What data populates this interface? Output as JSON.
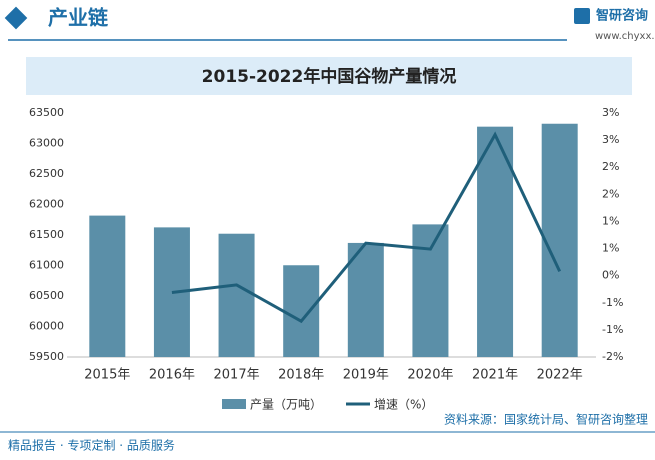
{
  "header": {
    "title": "产业链",
    "brand": "智研咨询",
    "url": "www.chyxx.com"
  },
  "chart_data": {
    "type": "bar",
    "title": "2015-2022年中国谷物产量情况",
    "categories": [
      "2015年",
      "2016年",
      "2017年",
      "2018年",
      "2019年",
      "2020年",
      "2021年",
      "2022年"
    ],
    "series": [
      {
        "name": "产量（万吨）",
        "type": "bar",
        "color": "#5b8fa8",
        "values": [
          61818,
          61625,
          61521,
          61004,
          61370,
          61674,
          63276,
          63324
        ]
      },
      {
        "name": "增速（%）",
        "type": "line",
        "axis": "y2",
        "color": "#1f5f7a",
        "values": [
          null,
          -0.31,
          -0.17,
          -0.84,
          0.6,
          0.49,
          2.6,
          0.08
        ]
      }
    ],
    "ylim": [
      59500,
      63500
    ],
    "yticks": [
      59500,
      60000,
      60500,
      61000,
      61500,
      62000,
      62500,
      63000,
      63500
    ],
    "y2lim": [
      -1.5,
      3
    ],
    "y2ticks": [
      {
        "value": -1.5,
        "label": "-2%"
      },
      {
        "value": -1,
        "label": "-1%"
      },
      {
        "value": -0.5,
        "label": "-1%"
      },
      {
        "value": 0,
        "label": "0%"
      },
      {
        "value": 0.5,
        "label": "1%"
      },
      {
        "value": 1,
        "label": "1%"
      },
      {
        "value": 1.5,
        "label": "2%"
      },
      {
        "value": 2,
        "label": "2%"
      },
      {
        "value": 2.5,
        "label": "3%"
      },
      {
        "value": 3,
        "label": "3%"
      }
    ]
  },
  "footer": {
    "left": "精品报告 · 专项定制 · 品质服务",
    "source": "资料来源：国家统计局、智研咨询整理"
  }
}
